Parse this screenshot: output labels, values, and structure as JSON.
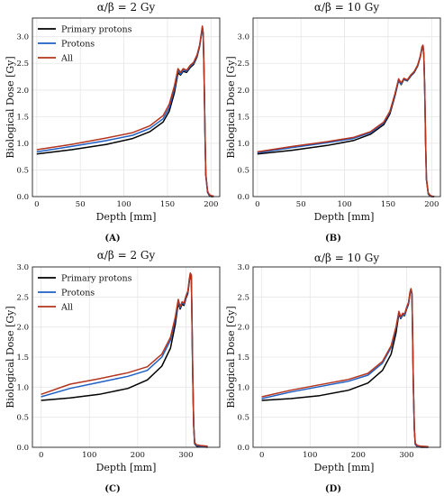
{
  "figure": {
    "panels": [
      {
        "letter": "(A)",
        "title": "α/β = 2 Gy",
        "xlabel": "Depth [mm]",
        "ylabel": "Biological Dose [Gy]",
        "legend": [
          "Primary protons",
          "Protons",
          "All"
        ]
      },
      {
        "letter": "(B)",
        "title": "α/β = 10 Gy",
        "xlabel": "Depth [mm]",
        "ylabel": "Biological Dose [Gy]",
        "legend": []
      },
      {
        "letter": "(C)",
        "title": "α/β = 2 Gy",
        "xlabel": "Depth [mm]",
        "ylabel": "Biological Dose [Gy]",
        "legend": [
          "Primary protons",
          "Protons",
          "All"
        ]
      },
      {
        "letter": "(D)",
        "title": "α/β = 10 Gy",
        "xlabel": "Depth [mm]",
        "ylabel": "Biological Dose [Gy]",
        "legend": []
      }
    ],
    "colors": {
      "primary": "#000000",
      "protons": "#1f5fc4",
      "all": "#b5341e"
    }
  },
  "chart_data": [
    {
      "type": "line",
      "title": "α/β = 2 Gy",
      "xlabel": "Depth [mm]",
      "ylabel": "Biological Dose [Gy]",
      "xlim": [
        -5,
        210
      ],
      "ylim": [
        0,
        3.35
      ],
      "xticks": [
        0,
        50,
        100,
        150,
        200
      ],
      "yticks": [
        0.0,
        0.5,
        1.0,
        1.5,
        2.0,
        2.5,
        3.0
      ],
      "legend": "top-left",
      "grid": true,
      "series": [
        {
          "name": "Primary protons",
          "color": "#000000",
          "x": [
            0,
            40,
            80,
            110,
            130,
            145,
            152,
            158,
            162,
            165,
            168,
            172,
            176,
            180,
            184,
            187,
            189,
            190,
            191,
            192,
            193,
            194,
            196,
            198,
            200,
            203
          ],
          "y": [
            0.8,
            0.88,
            0.98,
            1.09,
            1.22,
            1.4,
            1.6,
            1.95,
            2.32,
            2.28,
            2.35,
            2.33,
            2.42,
            2.48,
            2.62,
            2.82,
            3.05,
            3.17,
            3.05,
            2.3,
            1.2,
            0.4,
            0.08,
            0.02,
            0.0,
            0.0
          ]
        },
        {
          "name": "Protons",
          "color": "#1f5fc4",
          "x": [
            0,
            40,
            80,
            110,
            130,
            145,
            152,
            158,
            162,
            165,
            168,
            172,
            176,
            180,
            184,
            187,
            189,
            190,
            191,
            192,
            193,
            194,
            196,
            198,
            200,
            203
          ],
          "y": [
            0.84,
            0.94,
            1.05,
            1.15,
            1.28,
            1.46,
            1.67,
            2.02,
            2.36,
            2.3,
            2.37,
            2.35,
            2.44,
            2.5,
            2.64,
            2.83,
            3.06,
            3.18,
            3.06,
            2.31,
            1.21,
            0.41,
            0.09,
            0.03,
            0.01,
            0.0
          ]
        },
        {
          "name": "All",
          "color": "#b5341e",
          "x": [
            0,
            40,
            80,
            110,
            130,
            145,
            152,
            158,
            162,
            165,
            168,
            172,
            176,
            180,
            184,
            187,
            189,
            190,
            191,
            192,
            193,
            194,
            196,
            198,
            200,
            203
          ],
          "y": [
            0.88,
            0.98,
            1.1,
            1.2,
            1.33,
            1.52,
            1.73,
            2.08,
            2.4,
            2.33,
            2.4,
            2.37,
            2.46,
            2.52,
            2.66,
            2.85,
            3.08,
            3.2,
            3.08,
            2.33,
            1.23,
            0.43,
            0.1,
            0.04,
            0.02,
            0.01
          ]
        }
      ]
    },
    {
      "type": "line",
      "title": "α/β = 10 Gy",
      "xlabel": "Depth [mm]",
      "ylabel": "Biological Dose [Gy]",
      "xlim": [
        -5,
        210
      ],
      "ylim": [
        0,
        3.35
      ],
      "xticks": [
        0,
        50,
        100,
        150,
        200
      ],
      "yticks": [
        0.0,
        0.5,
        1.0,
        1.5,
        2.0,
        2.5,
        3.0
      ],
      "grid": true,
      "series": [
        {
          "name": "Primary protons",
          "color": "#000000",
          "x": [
            0,
            40,
            80,
            110,
            130,
            145,
            152,
            158,
            162,
            165,
            168,
            172,
            176,
            180,
            184,
            187,
            189,
            190,
            191,
            192,
            193,
            194,
            196,
            198,
            200,
            203
          ],
          "y": [
            0.8,
            0.87,
            0.96,
            1.05,
            1.17,
            1.35,
            1.55,
            1.9,
            2.18,
            2.1,
            2.2,
            2.17,
            2.26,
            2.33,
            2.45,
            2.62,
            2.8,
            2.82,
            2.65,
            2.0,
            1.0,
            0.32,
            0.05,
            0.01,
            0.0,
            0.0
          ]
        },
        {
          "name": "Protons",
          "color": "#1f5fc4",
          "x": [
            0,
            40,
            80,
            110,
            130,
            145,
            152,
            158,
            162,
            165,
            168,
            172,
            176,
            180,
            184,
            187,
            189,
            190,
            191,
            192,
            193,
            194,
            196,
            198,
            200,
            203
          ],
          "y": [
            0.82,
            0.92,
            1.01,
            1.09,
            1.2,
            1.38,
            1.58,
            1.92,
            2.19,
            2.11,
            2.21,
            2.18,
            2.27,
            2.34,
            2.46,
            2.63,
            2.81,
            2.83,
            2.66,
            2.01,
            1.01,
            0.33,
            0.06,
            0.02,
            0.0,
            0.0
          ]
        },
        {
          "name": "All",
          "color": "#b5341e",
          "x": [
            0,
            40,
            80,
            110,
            130,
            145,
            152,
            158,
            162,
            165,
            168,
            172,
            176,
            180,
            184,
            187,
            189,
            190,
            191,
            192,
            193,
            194,
            196,
            198,
            200,
            203
          ],
          "y": [
            0.84,
            0.94,
            1.03,
            1.11,
            1.22,
            1.4,
            1.6,
            1.94,
            2.21,
            2.13,
            2.22,
            2.19,
            2.28,
            2.35,
            2.47,
            2.64,
            2.82,
            2.84,
            2.67,
            2.02,
            1.02,
            0.34,
            0.07,
            0.03,
            0.01,
            0.0
          ]
        }
      ]
    },
    {
      "type": "line",
      "title": "α/β = 2 Gy",
      "xlabel": "Depth [mm]",
      "ylabel": "Biological Dose [Gy]",
      "xlim": [
        -18,
        370
      ],
      "ylim": [
        0,
        3.0
      ],
      "xticks": [
        0,
        100,
        200,
        300
      ],
      "yticks": [
        0.0,
        0.5,
        1.0,
        1.5,
        2.0,
        2.5,
        3.0
      ],
      "legend": "top-left",
      "grid": true,
      "series": [
        {
          "name": "Primary protons",
          "color": "#000000",
          "x": [
            0,
            60,
            120,
            180,
            220,
            250,
            268,
            278,
            284,
            288,
            292,
            296,
            300,
            304,
            307,
            309,
            311,
            312,
            314,
            316,
            318,
            322,
            330,
            345
          ],
          "y": [
            0.78,
            0.82,
            0.88,
            0.98,
            1.12,
            1.35,
            1.65,
            2.05,
            2.4,
            2.3,
            2.38,
            2.36,
            2.48,
            2.56,
            2.76,
            2.88,
            2.85,
            2.4,
            1.2,
            0.35,
            0.06,
            0.02,
            0.01,
            0.0
          ]
        },
        {
          "name": "Protons",
          "color": "#1f5fc4",
          "x": [
            0,
            60,
            120,
            180,
            220,
            250,
            268,
            278,
            284,
            288,
            292,
            296,
            300,
            304,
            307,
            309,
            311,
            312,
            314,
            316,
            318,
            322,
            330,
            345
          ],
          "y": [
            0.84,
            0.98,
            1.08,
            1.18,
            1.28,
            1.5,
            1.78,
            2.13,
            2.43,
            2.32,
            2.4,
            2.38,
            2.5,
            2.58,
            2.78,
            2.89,
            2.86,
            2.41,
            1.21,
            0.36,
            0.07,
            0.03,
            0.02,
            0.01
          ]
        },
        {
          "name": "All",
          "color": "#b5341e",
          "x": [
            0,
            60,
            120,
            180,
            220,
            250,
            268,
            278,
            284,
            288,
            292,
            296,
            300,
            304,
            307,
            309,
            311,
            312,
            314,
            316,
            318,
            322,
            330,
            345
          ],
          "y": [
            0.88,
            1.05,
            1.14,
            1.24,
            1.34,
            1.55,
            1.83,
            2.17,
            2.46,
            2.34,
            2.42,
            2.4,
            2.52,
            2.6,
            2.8,
            2.9,
            2.87,
            2.42,
            1.22,
            0.37,
            0.08,
            0.04,
            0.03,
            0.02
          ]
        }
      ]
    },
    {
      "type": "line",
      "title": "α/β = 10 Gy",
      "xlabel": "Depth [mm]",
      "ylabel": "Biological Dose [Gy]",
      "xlim": [
        -18,
        370
      ],
      "ylim": [
        0,
        3.0
      ],
      "xticks": [
        0,
        100,
        200,
        300
      ],
      "yticks": [
        0.0,
        0.5,
        1.0,
        1.5,
        2.0,
        2.5,
        3.0
      ],
      "grid": true,
      "series": [
        {
          "name": "Primary protons",
          "color": "#000000",
          "x": [
            0,
            60,
            120,
            180,
            220,
            250,
            268,
            278,
            284,
            288,
            292,
            296,
            300,
            304,
            307,
            309,
            311,
            312,
            314,
            316,
            318,
            322,
            330,
            345
          ],
          "y": [
            0.78,
            0.81,
            0.86,
            0.95,
            1.07,
            1.28,
            1.55,
            1.9,
            2.22,
            2.14,
            2.2,
            2.19,
            2.3,
            2.38,
            2.55,
            2.62,
            2.55,
            2.1,
            1.0,
            0.28,
            0.05,
            0.01,
            0.0,
            0.0
          ]
        },
        {
          "name": "Protons",
          "color": "#1f5fc4",
          "x": [
            0,
            60,
            120,
            180,
            220,
            250,
            268,
            278,
            284,
            288,
            292,
            296,
            300,
            304,
            307,
            309,
            311,
            312,
            314,
            316,
            318,
            322,
            330,
            345
          ],
          "y": [
            0.81,
            0.92,
            1.01,
            1.1,
            1.2,
            1.4,
            1.66,
            1.98,
            2.24,
            2.15,
            2.21,
            2.2,
            2.31,
            2.39,
            2.56,
            2.63,
            2.56,
            2.11,
            1.01,
            0.29,
            0.06,
            0.02,
            0.01,
            0.0
          ]
        },
        {
          "name": "All",
          "color": "#b5341e",
          "x": [
            0,
            60,
            120,
            180,
            220,
            250,
            268,
            278,
            284,
            288,
            292,
            296,
            300,
            304,
            307,
            309,
            311,
            312,
            314,
            316,
            318,
            322,
            330,
            345
          ],
          "y": [
            0.84,
            0.95,
            1.04,
            1.13,
            1.23,
            1.43,
            1.69,
            2.0,
            2.26,
            2.17,
            2.23,
            2.22,
            2.33,
            2.41,
            2.58,
            2.64,
            2.57,
            2.12,
            1.02,
            0.3,
            0.07,
            0.03,
            0.02,
            0.01
          ]
        }
      ]
    }
  ]
}
